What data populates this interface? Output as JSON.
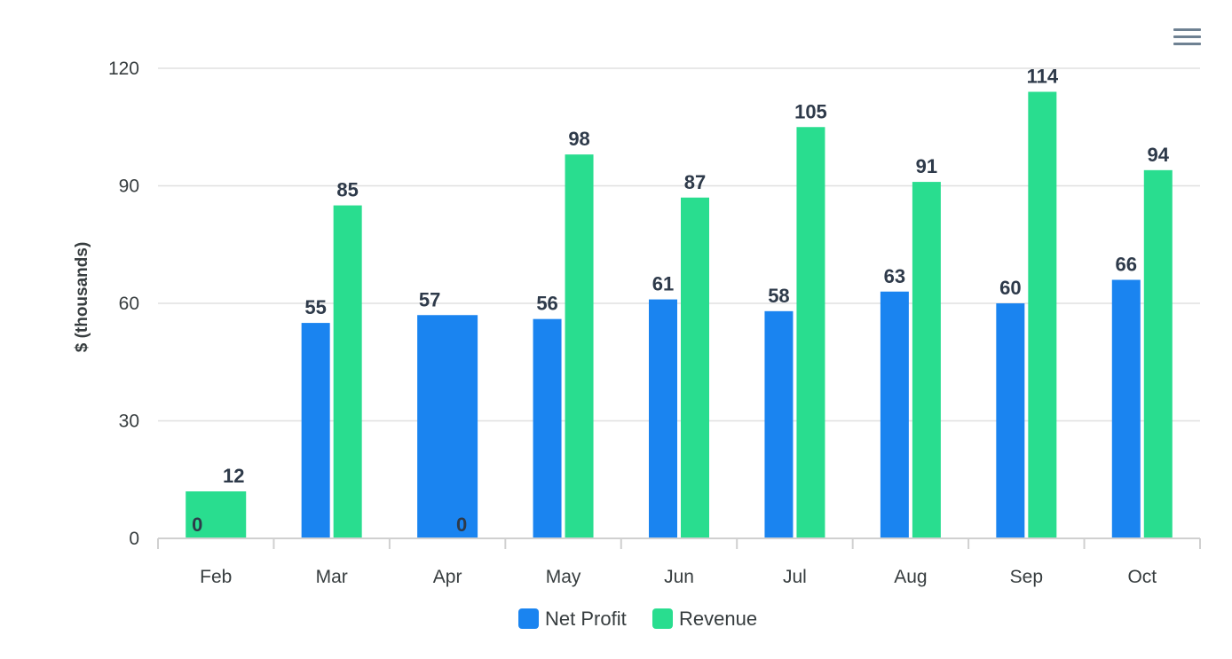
{
  "menu_icon": "hamburger-menu-icon",
  "chart_data": {
    "type": "bar",
    "title": "",
    "xlabel": "",
    "ylabel": "$ (thousands)",
    "ylim": [
      0,
      120
    ],
    "yticks": [
      0,
      30,
      60,
      90,
      120
    ],
    "grid": true,
    "legend_position": "bottom-center",
    "categories": [
      "Feb",
      "Mar",
      "Apr",
      "May",
      "Jun",
      "Jul",
      "Aug",
      "Sep",
      "Oct"
    ],
    "series": [
      {
        "name": "Net Profit",
        "color": "#1a84f0",
        "values": [
          0,
          55,
          57,
          56,
          61,
          58,
          63,
          60,
          66
        ]
      },
      {
        "name": "Revenue",
        "color": "#29dd8f",
        "values": [
          12,
          85,
          0,
          98,
          87,
          105,
          91,
          114,
          94
        ]
      }
    ]
  }
}
